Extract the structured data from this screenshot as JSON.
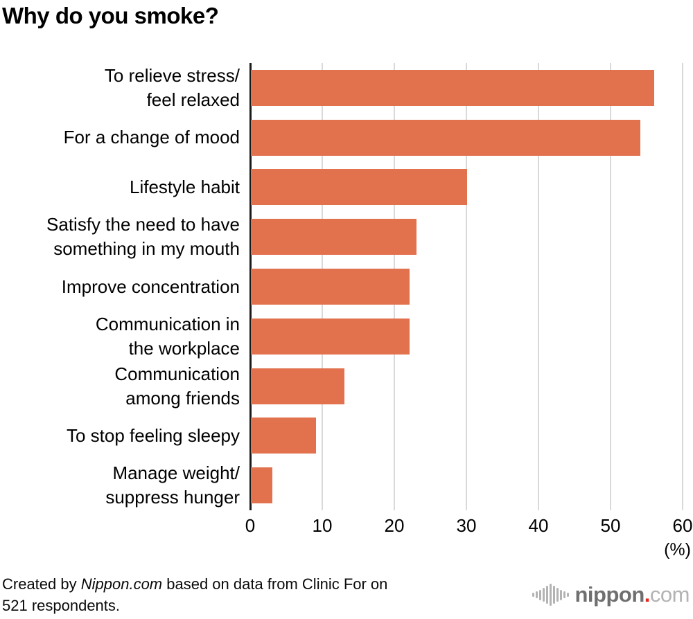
{
  "title": "Why do you smoke?",
  "chart_data": {
    "type": "bar",
    "orientation": "horizontal",
    "title": "Why do you smoke?",
    "unit_label": "(%)",
    "xlim": [
      0,
      60
    ],
    "x_ticks": [
      0,
      10,
      20,
      30,
      40,
      50,
      60
    ],
    "grid": true,
    "legend": false,
    "categories": [
      "To relieve stress/\nfeel relaxed",
      "For a change of mood",
      "Lifestyle habit",
      "Satisfy the need to have\nsomething in my mouth",
      "Improve concentration",
      "Communication in\nthe workplace",
      "Communication\namong friends",
      "To stop feeling sleepy",
      "Manage weight/\nsuppress hunger"
    ],
    "values": [
      56,
      54,
      30,
      23,
      22,
      22,
      13,
      9,
      3
    ],
    "bar_color": "#e2714e",
    "gridline_color": "#d9d9d9",
    "axis_color": "#1a1a1a"
  },
  "footer": {
    "source_prefix": "Created by ",
    "source_brand": "Nippon.com",
    "source_suffix": " based on data from Clinic For on\n521 respondents.",
    "logo": {
      "icon": "soundwave-bars-icon",
      "word": "nippon",
      "dot": ".",
      "tld": "com",
      "word_color": "#6f6f6f",
      "dot_color": "#e8251f",
      "tld_color": "#b3b3b3",
      "icon_color": "#b3b3b3"
    }
  }
}
